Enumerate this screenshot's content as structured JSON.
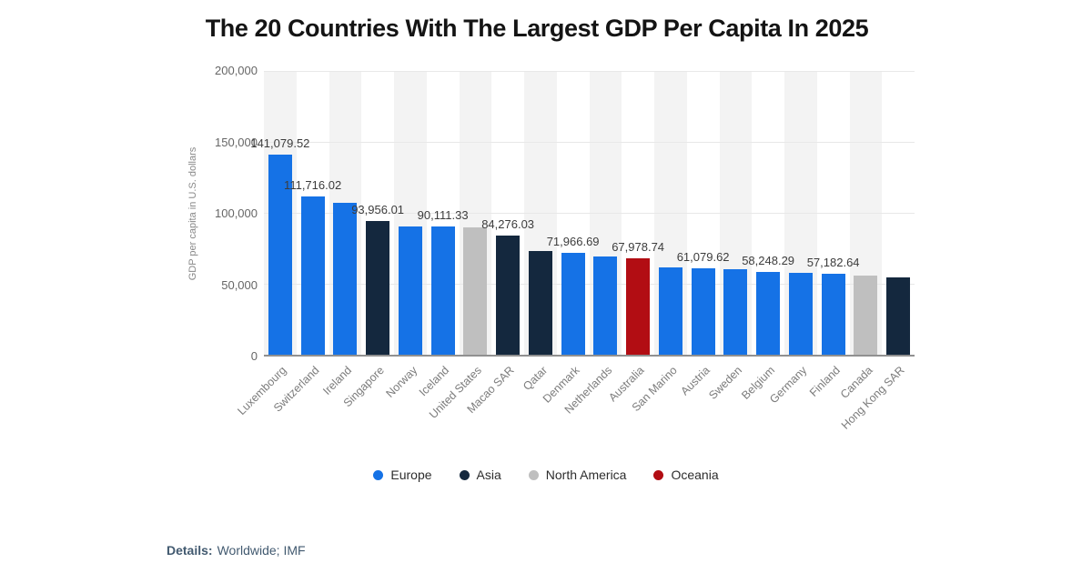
{
  "chart_data": {
    "type": "bar",
    "title": "The 20 Countries With The Largest GDP Per Capita In 2025",
    "xlabel": "",
    "ylabel": "GDP per capita in U.S. dollars",
    "ylim": [
      0,
      200000
    ],
    "grid": true,
    "column_banding": true,
    "legend_position": "bottom",
    "yticks": [
      {
        "value": 0,
        "label": "0"
      },
      {
        "value": 50000,
        "label": "50,000"
      },
      {
        "value": 100000,
        "label": "100,000"
      },
      {
        "value": 150000,
        "label": "150,000"
      },
      {
        "value": 200000,
        "label": "200,000"
      }
    ],
    "regions": [
      {
        "name": "Europe",
        "color": "#1572e6"
      },
      {
        "name": "Asia",
        "color": "#14283e"
      },
      {
        "name": "North America",
        "color": "#bfbfbf"
      },
      {
        "name": "Oceania",
        "color": "#b20d13"
      }
    ],
    "bars": [
      {
        "country": "Luxembourg",
        "region": "Europe",
        "value": 141079.52,
        "label": "141,079.52"
      },
      {
        "country": "Switzerland",
        "region": "Europe",
        "value": 111716.02,
        "label": "111,716.02"
      },
      {
        "country": "Ireland",
        "region": "Europe",
        "value": 107000,
        "label": null
      },
      {
        "country": "Singapore",
        "region": "Asia",
        "value": 93956.01,
        "label": "93,956.01"
      },
      {
        "country": "Norway",
        "region": "Europe",
        "value": 90600,
        "label": null
      },
      {
        "country": "Iceland",
        "region": "Europe",
        "value": 90111.33,
        "label": "90,111.33"
      },
      {
        "country": "United States",
        "region": "North America",
        "value": 89500,
        "label": null
      },
      {
        "country": "Macao SAR",
        "region": "Asia",
        "value": 84276.03,
        "label": "84,276.03"
      },
      {
        "country": "Qatar",
        "region": "Asia",
        "value": 73300,
        "label": null
      },
      {
        "country": "Denmark",
        "region": "Europe",
        "value": 71966.69,
        "label": "71,966.69"
      },
      {
        "country": "Netherlands",
        "region": "Europe",
        "value": 69500,
        "label": null
      },
      {
        "country": "Australia",
        "region": "Oceania",
        "value": 67978.74,
        "label": "67,978.74"
      },
      {
        "country": "San Marino",
        "region": "Europe",
        "value": 61700,
        "label": null
      },
      {
        "country": "Austria",
        "region": "Europe",
        "value": 61079.62,
        "label": "61,079.62"
      },
      {
        "country": "Sweden",
        "region": "Europe",
        "value": 60300,
        "label": null
      },
      {
        "country": "Belgium",
        "region": "Europe",
        "value": 58248.29,
        "label": "58,248.29"
      },
      {
        "country": "Germany",
        "region": "Europe",
        "value": 57700,
        "label": null
      },
      {
        "country": "Finland",
        "region": "Europe",
        "value": 57182.64,
        "label": "57,182.64"
      },
      {
        "country": "Canada",
        "region": "North America",
        "value": 55500,
        "label": null
      },
      {
        "country": "Hong Kong SAR",
        "region": "Asia",
        "value": 54200,
        "label": null
      }
    ]
  },
  "footer": {
    "details_label": "Details:",
    "details_value": "Worldwide; IMF"
  }
}
